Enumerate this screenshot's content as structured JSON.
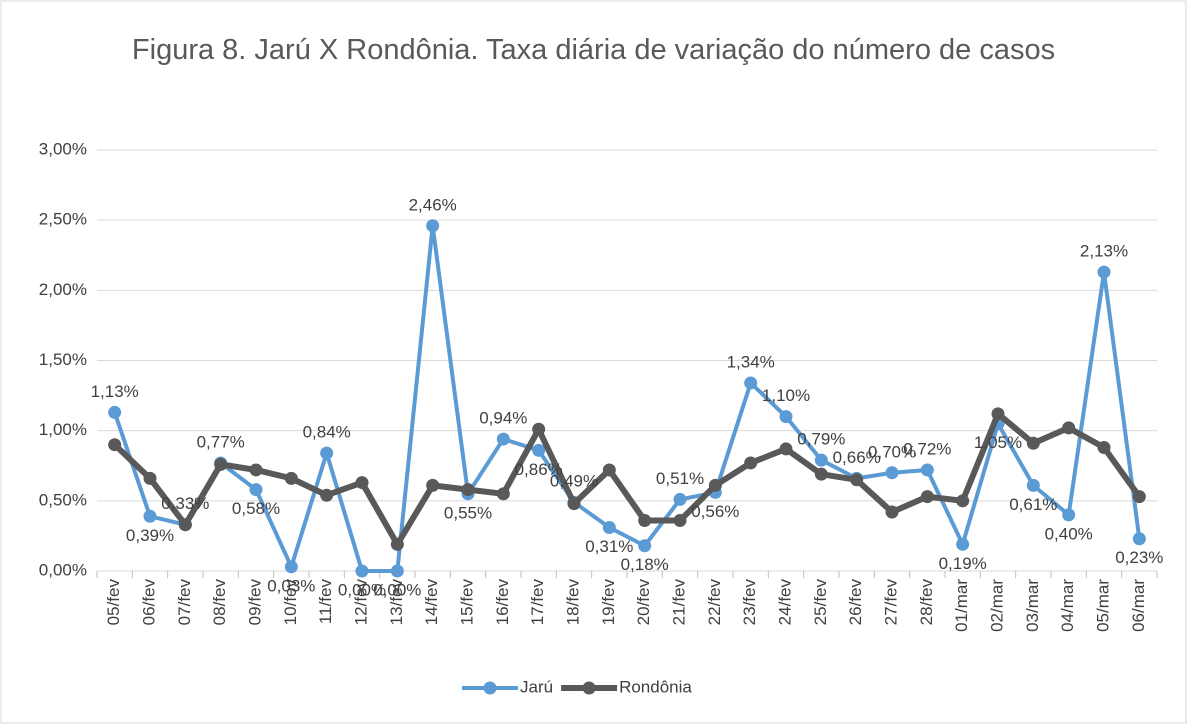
{
  "chart_data": {
    "type": "line",
    "title": "Figura 8. Jarú X Rondônia. Taxa diária de variação do número de casos",
    "categories": [
      "05/fev",
      "06/fev",
      "07/fev",
      "08/fev",
      "09/fev",
      "10/fev",
      "11/fev",
      "12/fev",
      "13/fev",
      "14/fev",
      "15/fev",
      "16/fev",
      "17/fev",
      "18/fev",
      "19/fev",
      "20/fev",
      "21/fev",
      "22/fev",
      "23/fev",
      "24/fev",
      "25/fev",
      "26/fev",
      "27/fev",
      "28/fev",
      "01/mar",
      "02/mar",
      "03/mar",
      "04/mar",
      "05/mar",
      "06/mar"
    ],
    "series": [
      {
        "name": "Jarú",
        "color": "#5b9bd5",
        "values": [
          1.13,
          0.39,
          0.33,
          0.77,
          0.58,
          0.03,
          0.84,
          0.0,
          0.0,
          2.46,
          0.55,
          0.94,
          0.86,
          0.49,
          0.31,
          0.18,
          0.51,
          0.56,
          1.34,
          1.1,
          0.79,
          0.66,
          0.7,
          0.72,
          0.19,
          1.05,
          0.61,
          0.4,
          2.13,
          0.23
        ],
        "value_labels": [
          "1,13%",
          "0,39%",
          "0,33%",
          "0,77%",
          "0,58%",
          "0,03%",
          "0,84%",
          "0,00%",
          "0,00%",
          "2,46%",
          "0,55%",
          "0,94%",
          "0,86%",
          "0,49%",
          "0,31%",
          "0,18%",
          "0,51%",
          "0,56%",
          "1,34%",
          "1,10%",
          "0,79%",
          "0,66%",
          "0,70%",
          "0,72%",
          "0,19%",
          "1,05%",
          "0,61%",
          "0,40%",
          "2,13%",
          "0,23%"
        ]
      },
      {
        "name": "Rondônia",
        "color": "#595959",
        "values": [
          0.9,
          0.66,
          0.33,
          0.76,
          0.72,
          0.66,
          0.54,
          0.63,
          0.19,
          0.61,
          0.58,
          0.55,
          1.01,
          0.48,
          0.72,
          0.36,
          0.36,
          0.61,
          0.77,
          0.87,
          0.69,
          0.65,
          0.42,
          0.53,
          0.5,
          1.12,
          0.91,
          1.02,
          0.88,
          0.53
        ]
      }
    ],
    "ylim": [
      0,
      3
    ],
    "yticks": [
      {
        "value": 0,
        "label": "0,00%"
      },
      {
        "value": 0.5,
        "label": "0,50%"
      },
      {
        "value": 1,
        "label": "1,00%"
      },
      {
        "value": 1.5,
        "label": "1,50%"
      },
      {
        "value": 2,
        "label": "2,00%"
      },
      {
        "value": 2.5,
        "label": "2,50%"
      },
      {
        "value": 3,
        "label": "3,00%"
      }
    ],
    "grid": true,
    "legend": "bottom"
  }
}
